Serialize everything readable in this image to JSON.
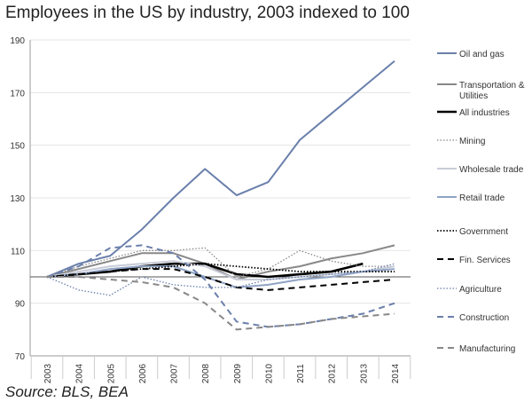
{
  "chart_data": {
    "type": "line",
    "title": "Employees in the US by industry, 2003 indexed to 100",
    "source": "Source: BLS, BEA",
    "x": [
      "2003",
      "2004",
      "2005",
      "2006",
      "2007",
      "2008",
      "2009",
      "2010",
      "2011",
      "2012",
      "2013",
      "2014"
    ],
    "ylim": [
      70,
      190
    ],
    "yticks": [
      "70",
      "90",
      "110",
      "130",
      "150",
      "170",
      "190"
    ],
    "grid": true,
    "legend_position": "right",
    "series": [
      {
        "name": "Oil and gas",
        "color": "#6a7fab",
        "dash": "solid",
        "width": 2,
        "values": [
          100,
          105,
          108,
          118,
          130,
          141,
          131,
          136,
          152,
          162,
          172,
          182
        ]
      },
      {
        "name": "Transportation & Utilities",
        "color": "#888888",
        "dash": "solid",
        "width": 2,
        "values": [
          100,
          103,
          106,
          109,
          109,
          105,
          99,
          102,
          104,
          107,
          109,
          112
        ]
      },
      {
        "name": "All industries",
        "color": "#000000",
        "dash": "solid",
        "width": 2.6,
        "values": [
          100,
          101,
          102,
          104,
          105,
          105,
          101,
          100,
          101,
          102,
          105,
          null
        ]
      },
      {
        "name": "Mining",
        "color": "#888888",
        "dash": "dotted",
        "width": 1.3,
        "values": [
          100,
          104,
          107,
          110,
          110,
          111,
          100,
          103,
          110,
          106,
          104,
          104
        ]
      },
      {
        "name": "Wholesale trade",
        "color": "#c8ccd8",
        "dash": "solid",
        "width": 2,
        "values": [
          100,
          102,
          104,
          105,
          106,
          104,
          99,
          99,
          100,
          101,
          102,
          104
        ]
      },
      {
        "name": "Retail trade",
        "color": "#8fa3c4",
        "dash": "solid",
        "width": 2,
        "values": [
          100,
          101,
          103,
          104,
          104,
          100,
          96,
          97,
          99,
          100,
          102,
          103
        ]
      },
      {
        "name": "Government",
        "color": "#000000",
        "dash": "dotted",
        "width": 1.8,
        "values": [
          100,
          101,
          102,
          103,
          104,
          105,
          104,
          103,
          102,
          102,
          102,
          102
        ]
      },
      {
        "name": "Fin. Services",
        "color": "#000000",
        "dash": "dashed",
        "width": 2,
        "values": [
          100,
          101,
          102,
          103,
          103,
          100,
          96,
          95,
          96,
          97,
          98,
          99
        ]
      },
      {
        "name": "Agriculture",
        "color": "#6a7fab",
        "dash": "dotted",
        "width": 1.3,
        "values": [
          100,
          95,
          93,
          100,
          97,
          96,
          96,
          99,
          100,
          101,
          102,
          105
        ]
      },
      {
        "name": "Construction",
        "color": "#6a7fab",
        "dash": "dashed",
        "width": 2,
        "values": [
          100,
          104,
          111,
          112,
          109,
          99,
          83,
          81,
          82,
          84,
          86,
          90
        ]
      },
      {
        "name": "Manufacturing",
        "color": "#888888",
        "dash": "dashed",
        "width": 2,
        "values": [
          100,
          100,
          99,
          98,
          96,
          90,
          80,
          81,
          82,
          84,
          85,
          86
        ]
      }
    ]
  }
}
